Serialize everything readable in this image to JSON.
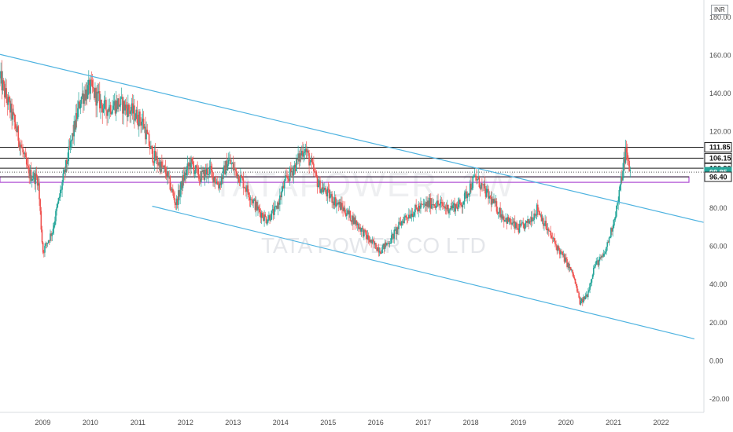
{
  "currency": "INR",
  "watermark": {
    "symbol": "TATAPOWER, 1W",
    "name": "TATA POWER CO LTD"
  },
  "colors": {
    "up": "#26a69a",
    "down": "#ef5350",
    "trendline": "#4fb3e0",
    "level": "#1a1a1a",
    "zone": "#b04fd4",
    "last_price_tag": "#26a69a"
  },
  "chart_data": {
    "type": "candlestick",
    "x_tick_labels": [
      "2009",
      "2010",
      "2011",
      "2012",
      "2013",
      "2014",
      "2015",
      "2016",
      "2017",
      "2018",
      "2019",
      "2020",
      "2021",
      "2022"
    ],
    "y_tick_labels": [
      "180.00",
      "160.00",
      "140.00",
      "120.00",
      "100.00",
      "80.00",
      "60.00",
      "40.00",
      "20.00",
      "0.00",
      "-20.00"
    ],
    "y_ticks": [
      180,
      160,
      140,
      120,
      100,
      80,
      60,
      40,
      20,
      0,
      -20
    ],
    "ylim": [
      -27,
      189
    ],
    "xlim": [
      2008.1,
      2022.9
    ],
    "grid": false,
    "series": [
      {
        "x": [
          2008.1,
          2008.4,
          2008.7,
          2008.9,
          2009.0,
          2009.2,
          2009.4,
          2009.6,
          2009.8,
          2010.0,
          2010.3,
          2010.6,
          2010.9,
          2011.1,
          2011.3,
          2011.6,
          2011.8,
          2011.95,
          2012.1,
          2012.3,
          2012.5,
          2012.7,
          2012.9,
          2013.2,
          2013.5,
          2013.7,
          2013.9,
          2014.1,
          2014.3,
          2014.5,
          2014.8,
          2015.0,
          2015.3,
          2015.6,
          2015.9,
          2016.1,
          2016.3,
          2016.6,
          2016.9,
          2017.2,
          2017.5,
          2017.8,
          2018.0,
          2018.1,
          2018.4,
          2018.7,
          2019.0,
          2019.2,
          2019.4,
          2019.6,
          2019.8,
          2020.0,
          2020.15,
          2020.3,
          2020.45,
          2020.6,
          2020.8,
          2020.95,
          2021.1,
          2021.25,
          2021.35
        ],
        "close": [
          148,
          125,
          98,
          95,
          57,
          68,
          92,
          115,
          138,
          143,
          132,
          135,
          130,
          125,
          108,
          98,
          82,
          95,
          104,
          96,
          100,
          92,
          105,
          94,
          80,
          74,
          79,
          94,
          102,
          112,
          92,
          87,
          80,
          72,
          62,
          58,
          63,
          75,
          80,
          83,
          80,
          82,
          92,
          96,
          85,
          75,
          69,
          72,
          80,
          69,
          60,
          52,
          45,
          30,
          35,
          50,
          55,
          68,
          84,
          110,
          98.85
        ]
      }
    ],
    "horizontal_levels": [
      111.85,
      106.15,
      100.9,
      98.85
    ],
    "highlighted_level": 96.4,
    "support_zone": [
      93.5,
      96.4
    ],
    "last_price": 98.85,
    "price_tags": [
      {
        "value": "111.85",
        "style": "dark"
      },
      {
        "value": "106.15",
        "style": "dark"
      },
      {
        "value": "100.90",
        "style": "dark"
      },
      {
        "value": "98.85",
        "style": "last"
      },
      {
        "value": "96.40",
        "style": "dark"
      }
    ],
    "trendlines": [
      {
        "name": "upper",
        "points": [
          [
            2008.1,
            160.5
          ],
          [
            2022.9,
            72.5
          ]
        ]
      },
      {
        "name": "lower",
        "points": [
          [
            2011.3,
            81
          ],
          [
            2022.7,
            11.5
          ]
        ]
      }
    ]
  }
}
